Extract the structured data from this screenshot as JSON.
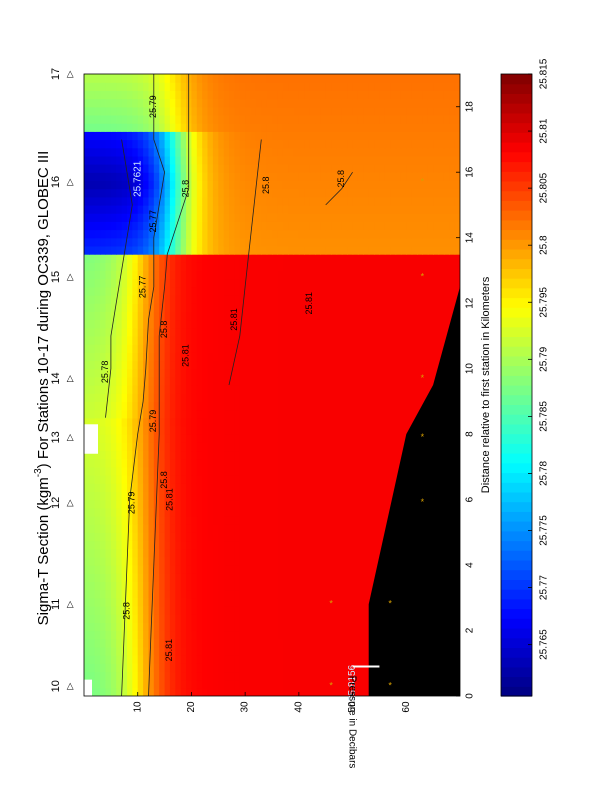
{
  "chart_data": {
    "type": "heatmap",
    "title": "Sigma-T Section (kgm",
    "title_sup": "-3",
    "title_rest": ") For Stations 10-17 during OC339, GLOBEC III",
    "xlabel": "Distance relative to first station in Kilometers",
    "ylabel": "Pressure in Decibars",
    "xlim": [
      0,
      19
    ],
    "ylim": [
      0,
      70
    ],
    "x_ticks": [
      "0",
      "2",
      "4",
      "6",
      "8",
      "10",
      "12",
      "14",
      "16",
      "18"
    ],
    "y_ticks": [
      "10",
      "20",
      "30",
      "40",
      "50",
      "60"
    ],
    "stations": {
      "labels": [
        "10",
        "11",
        "12",
        "13",
        "14",
        "15",
        "16",
        "17"
      ],
      "x": [
        0.3,
        2.8,
        5.9,
        7.9,
        9.7,
        12.8,
        15.7,
        19
      ]
    },
    "colorbar": {
      "min": 25.7605,
      "max": 25.815,
      "tick_values": [
        25.765,
        25.77,
        25.775,
        25.78,
        25.785,
        25.79,
        25.795,
        25.8,
        25.805,
        25.81,
        25.815
      ],
      "tick_labels": [
        "25.765",
        "25.77",
        "25.775",
        "25.78",
        "25.785",
        "25.79",
        "25.795",
        "25.8",
        "25.805",
        "25.81",
        "25.815"
      ]
    },
    "bottom_depth": {
      "x": [
        0,
        2.8,
        8.0,
        9.5,
        15.5,
        19
      ],
      "y": [
        53,
        53,
        60,
        65,
        75,
        85
      ]
    },
    "samples": [
      {
        "x": 0.3,
        "y": 57
      },
      {
        "x": 0.3,
        "y": 46
      },
      {
        "x": 2.8,
        "y": 46
      },
      {
        "x": 2.8,
        "y": 57
      },
      {
        "x": 5.9,
        "y": 63
      },
      {
        "x": 7.9,
        "y": 63
      },
      {
        "x": 9.7,
        "y": 63
      },
      {
        "x": 12.8,
        "y": 63
      },
      {
        "x": 15.7,
        "y": 63
      }
    ],
    "contour_labels": [
      {
        "text": "25.81",
        "x": 1.4,
        "y": 16
      },
      {
        "text": "25.8",
        "x": 2.6,
        "y": 8
      },
      {
        "text": "25.79",
        "x": 5.9,
        "y": 9
      },
      {
        "text": "25.81",
        "x": 6.0,
        "y": 16
      },
      {
        "text": "25.8",
        "x": 6.6,
        "y": 15
      },
      {
        "text": "25.79",
        "x": 8.4,
        "y": 13
      },
      {
        "text": "25.81",
        "x": 10.4,
        "y": 19
      },
      {
        "text": "25.8",
        "x": 11.2,
        "y": 15
      },
      {
        "text": "25.78",
        "x": 9.9,
        "y": 4
      },
      {
        "text": "25.77",
        "x": 12.5,
        "y": 11
      },
      {
        "text": "25.81",
        "x": 11.5,
        "y": 28
      },
      {
        "text": "25.81",
        "x": 12.0,
        "y": 42
      },
      {
        "text": "25.8",
        "x": 15.5,
        "y": 19
      },
      {
        "text": "25.8",
        "x": 15.6,
        "y": 34
      },
      {
        "text": "25.8",
        "x": 15.8,
        "y": 48
      },
      {
        "text": "25.79",
        "x": 18.0,
        "y": 13
      },
      {
        "text": "25.77",
        "x": 14.5,
        "y": 13
      }
    ],
    "point_annotations": [
      {
        "text": "25.7621",
        "x": 15.8,
        "y": 10
      },
      {
        "text": "25.8156",
        "x": 0.4,
        "y": 50
      }
    ]
  }
}
